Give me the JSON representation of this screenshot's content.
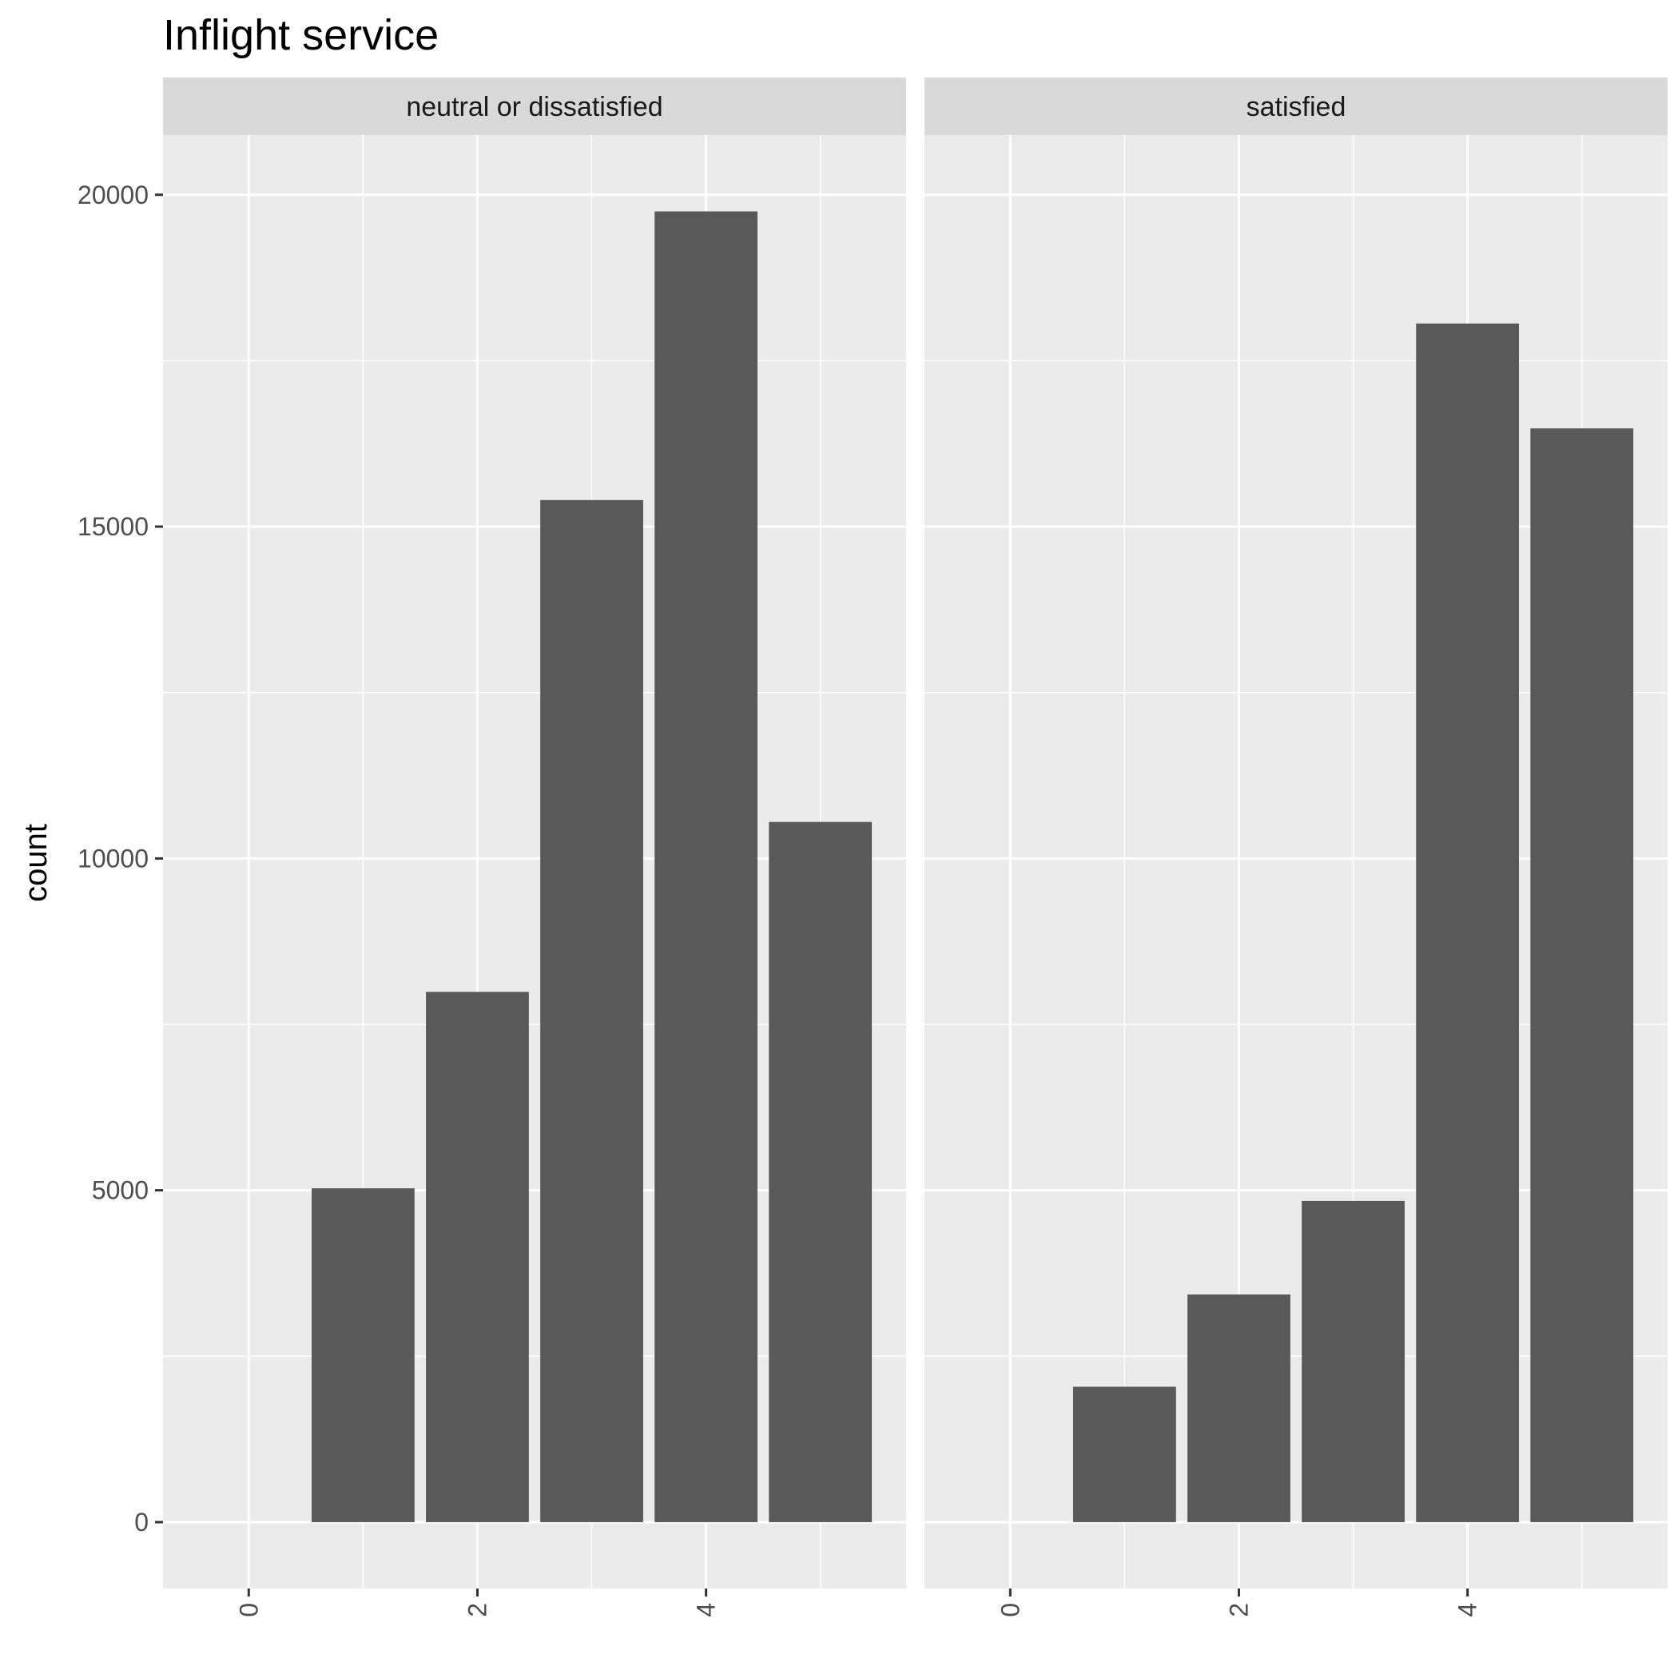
{
  "chart_data": {
    "type": "bar",
    "title": "Inflight service",
    "xlabel": "",
    "ylabel": "count",
    "xlim": [
      -0.75,
      5.75
    ],
    "ylim": [
      -1000,
      20900
    ],
    "x_ticks": [
      0,
      2,
      4
    ],
    "y_ticks": [
      0,
      5000,
      10000,
      15000,
      20000
    ],
    "grid": true,
    "bar_color": "#595959",
    "panel_bg": "#ebebeb",
    "strip_bg": "#d9d9d9",
    "facets": [
      {
        "label": "neutral or dissatisfied",
        "x": [
          1,
          2,
          3,
          4,
          5
        ],
        "values": [
          5030,
          7990,
          15400,
          19750,
          10550
        ]
      },
      {
        "label": "satisfied",
        "x": [
          1,
          2,
          3,
          4,
          5
        ],
        "values": [
          2040,
          3430,
          4840,
          18060,
          16480
        ]
      }
    ]
  }
}
